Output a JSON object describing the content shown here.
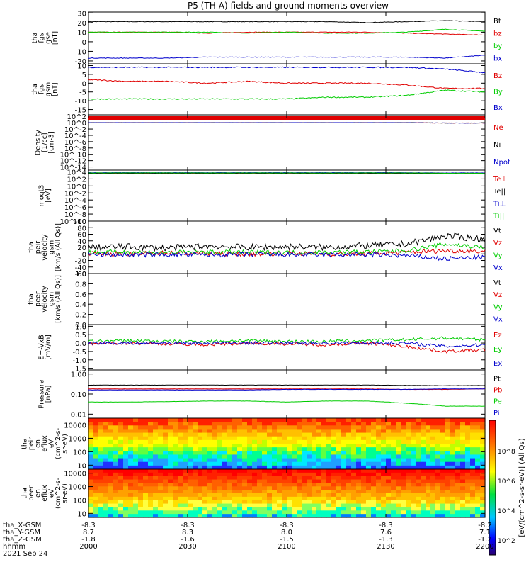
{
  "title": "P5 (TH-A) fields and ground moments overview",
  "colors": {
    "black": "#000000",
    "red": "#e00000",
    "green": "#00cc00",
    "blue": "#0000cc"
  },
  "chart_data": [
    {
      "type": "line",
      "ylabel": [
        "tha",
        "fgs",
        "gse",
        "[nT]"
      ],
      "yticks": [
        "30",
        "20",
        "10",
        "0",
        "-10",
        "-20"
      ],
      "ylim": [
        -23,
        31
      ],
      "series": [
        {
          "name": "Bt",
          "color": "black",
          "values": [
            21,
            21,
            21,
            21,
            21,
            21,
            21,
            20,
            21,
            22,
            21
          ]
        },
        {
          "name": "bz",
          "color": "red",
          "values": [
            10,
            10,
            10,
            9,
            10,
            10,
            10,
            10,
            9,
            8,
            7
          ]
        },
        {
          "name": "by",
          "color": "green",
          "values": [
            10,
            10,
            10,
            10,
            9,
            10,
            9,
            9,
            10,
            13,
            11
          ]
        },
        {
          "name": "bx",
          "color": "blue",
          "values": [
            -17,
            -17,
            -17,
            -16,
            -16,
            -16,
            -16,
            -16,
            -16,
            -17,
            -14
          ]
        }
      ]
    },
    {
      "type": "line",
      "ylabel": [
        "tha",
        "fgs",
        "gsm",
        "[nT]"
      ],
      "yticks": [
        "10",
        "5",
        "0",
        "-5",
        "-10",
        "-15"
      ],
      "ylim": [
        -18,
        11
      ],
      "series": [
        {
          "name": "Bz",
          "color": "red",
          "values": [
            2,
            1,
            1,
            0,
            1,
            0,
            0,
            0,
            -1,
            -3,
            -3
          ]
        },
        {
          "name": "By",
          "color": "green",
          "values": [
            -9,
            -9,
            -9,
            -9,
            -9,
            -9,
            -8,
            -8,
            -7,
            -4,
            -5
          ]
        },
        {
          "name": "Bx",
          "color": "blue",
          "values": [
            9,
            9,
            9,
            9,
            9,
            9,
            9,
            9,
            9,
            8,
            6
          ]
        }
      ]
    },
    {
      "type": "line",
      "ylabel": [
        "Density",
        "[1/cc]",
        "[cm-3]"
      ],
      "yticks": [
        "10^2",
        "10^0",
        "10^-2",
        "10^-4",
        "10^-6",
        "10^-8",
        "10^-10",
        "10^-12",
        "10^-14"
      ],
      "ylim_log": [
        -15,
        2.5
      ],
      "series": [
        {
          "name": "Ne",
          "color": "red",
          "values": [
            1,
            1,
            1,
            1,
            1,
            1,
            1,
            1,
            1,
            0.8,
            0.8
          ]
        },
        {
          "name": "Ni",
          "color": "black",
          "values": [
            1,
            1,
            1,
            1,
            1,
            1,
            1,
            1,
            1,
            0.8,
            0.8
          ]
        },
        {
          "name": "Npot",
          "color": "blue",
          "values": [
            1,
            1,
            1,
            1,
            1,
            1,
            1,
            1,
            1,
            0.8,
            0.8
          ]
        }
      ]
    },
    {
      "type": "line",
      "ylabel": [
        "moqt3",
        "[eV]"
      ],
      "yticks": [
        "10^4",
        "10^2",
        "10^0",
        "10^-2",
        "10^-4",
        "10^-6",
        "10^-8",
        "10^-10"
      ],
      "ylim_log": [
        -10,
        4.5
      ],
      "series": [
        {
          "name": "Te⊥",
          "color": "red",
          "values": [
            4000,
            4000,
            4000,
            4000,
            4000,
            4000,
            4000,
            4000,
            4000,
            3000,
            3000
          ]
        },
        {
          "name": "Te||",
          "color": "black",
          "values": [
            4000,
            4000,
            4000,
            4000,
            4000,
            4000,
            4000,
            4000,
            4000,
            3000,
            3000
          ]
        },
        {
          "name": "Ti⊥",
          "color": "blue",
          "values": [
            6000,
            6000,
            6000,
            6000,
            6000,
            6000,
            6000,
            6000,
            6000,
            5000,
            5000
          ]
        },
        {
          "name": "Ti||",
          "color": "green",
          "values": [
            5000,
            5000,
            5000,
            5000,
            5000,
            5000,
            5000,
            5000,
            5000,
            4000,
            4000
          ]
        }
      ]
    },
    {
      "type": "line",
      "ylabel": [
        "tha",
        "peir",
        "velocity",
        "gsm",
        "[km/s (All Qs)]"
      ],
      "yticks": [
        "100",
        "80",
        "60",
        "40",
        "20",
        "0",
        "-20",
        "-40",
        "-60"
      ],
      "ylim": [
        -60,
        100
      ],
      "series": [
        {
          "name": "Vt",
          "color": "black",
          "values": [
            20,
            22,
            18,
            24,
            20,
            22,
            20,
            25,
            30,
            55,
            45
          ]
        },
        {
          "name": "Vz",
          "color": "red",
          "values": [
            2,
            0,
            3,
            1,
            0,
            2,
            0,
            0,
            5,
            10,
            8
          ]
        },
        {
          "name": "Vy",
          "color": "green",
          "values": [
            5,
            6,
            4,
            6,
            5,
            4,
            5,
            6,
            10,
            30,
            20
          ]
        },
        {
          "name": "Vx",
          "color": "blue",
          "values": [
            -2,
            -3,
            -2,
            -3,
            -2,
            -2,
            -3,
            -2,
            -5,
            -15,
            -10
          ]
        }
      ]
    },
    {
      "type": "line",
      "ylabel": [
        "tha",
        "peer",
        "velocity",
        "gsm",
        "[km/s (All Qs)]"
      ],
      "yticks": [
        "1.0",
        "0.8",
        "0.6",
        "0.4",
        "0.2",
        "0.0"
      ],
      "ylim": [
        0,
        1
      ],
      "series": [
        {
          "name": "Vt",
          "color": "black",
          "values": []
        },
        {
          "name": "Vz",
          "color": "red",
          "values": []
        },
        {
          "name": "Vy",
          "color": "green",
          "values": []
        },
        {
          "name": "Vx",
          "color": "blue",
          "values": []
        }
      ]
    },
    {
      "type": "line",
      "ylabel": [
        "E=-VxB",
        "[mV/m]"
      ],
      "yticks": [
        "1.0",
        "0.5",
        "0.0",
        "-0.5",
        "-1.0",
        "-1.5"
      ],
      "ylim": [
        -1.6,
        1.1
      ],
      "series": [
        {
          "name": "Ez",
          "color": "red",
          "values": [
            -0.05,
            0,
            -0.05,
            -0.1,
            0,
            -0.05,
            -0.1,
            0,
            -0.2,
            -0.5,
            -0.4
          ]
        },
        {
          "name": "Ey",
          "color": "green",
          "values": [
            0.1,
            0.15,
            0.1,
            0.1,
            0.15,
            0.1,
            0.1,
            0.15,
            0.2,
            0.3,
            0.2
          ]
        },
        {
          "name": "Ex",
          "color": "blue",
          "values": [
            0,
            0,
            0,
            0,
            0,
            0,
            0,
            0,
            0,
            -0.2,
            -0.1
          ]
        }
      ]
    },
    {
      "type": "line",
      "ylabel": [
        "Pressure",
        "[nPa]"
      ],
      "yticks": [
        "1.00",
        "0.10",
        "0.01"
      ],
      "ylim_log": [
        -2.2,
        0.2
      ],
      "series": [
        {
          "name": "Pt",
          "color": "black",
          "values": [
            0.28,
            0.28,
            0.28,
            0.28,
            0.28,
            0.28,
            0.28,
            0.28,
            0.27,
            0.26,
            0.27
          ]
        },
        {
          "name": "Pb",
          "color": "red",
          "values": [
            0.18,
            0.18,
            0.18,
            0.18,
            0.18,
            0.18,
            0.18,
            0.18,
            0.17,
            0.17,
            0.18
          ]
        },
        {
          "name": "Pe",
          "color": "green",
          "values": [
            0.04,
            0.04,
            0.042,
            0.045,
            0.045,
            0.04,
            0.045,
            0.045,
            0.035,
            0.025,
            0.025
          ]
        },
        {
          "name": "Pi",
          "color": "blue",
          "values": [
            0.16,
            0.16,
            0.16,
            0.16,
            0.16,
            0.17,
            0.17,
            0.17,
            0.17,
            0.18,
            0.18
          ]
        }
      ]
    },
    {
      "type": "heatmap",
      "ylabel": [
        "tha",
        "peir",
        "en",
        "eflux",
        "eV",
        "(cm^2-s-",
        "sr-eV)"
      ],
      "yticks": [
        "10000",
        "1000",
        "100",
        "10"
      ],
      "ylim_log": [
        0.7,
        4.5
      ]
    },
    {
      "type": "heatmap",
      "ylabel": [
        "tha",
        "peer",
        "en",
        "eflux",
        "eV",
        "(cm^2-s-",
        "sr-eV)"
      ],
      "yticks": [
        "10000",
        "1000",
        "100",
        "10"
      ],
      "ylim_log": [
        0.7,
        4.3
      ]
    }
  ],
  "colorbar": {
    "label": "[eV/(cm^2-s-sr-eV)] (All Qs)",
    "ticks": [
      "10^8",
      "10^6",
      "10^4",
      "10^2"
    ]
  },
  "xaxis": {
    "ticks": [
      "2000",
      "2030",
      "2100",
      "2130",
      "2200"
    ],
    "rows": [
      {
        "label": "tha_X-GSM",
        "values": [
          "-8.3",
          "-8.3",
          "-8.3",
          "-8.3",
          "-8.2"
        ]
      },
      {
        "label": "tha_Y-GSM",
        "values": [
          "8.7",
          "8.3",
          "8.0",
          "7.6",
          "7.1"
        ]
      },
      {
        "label": "tha_Z-GSM",
        "values": [
          "-1.8",
          "-1.6",
          "-1.5",
          "-1.3",
          "-1.2"
        ]
      },
      {
        "label": "hhmm",
        "values": [
          "2000",
          "2030",
          "2100",
          "2130",
          "2200"
        ]
      }
    ],
    "date": "2021 Sep 24"
  }
}
